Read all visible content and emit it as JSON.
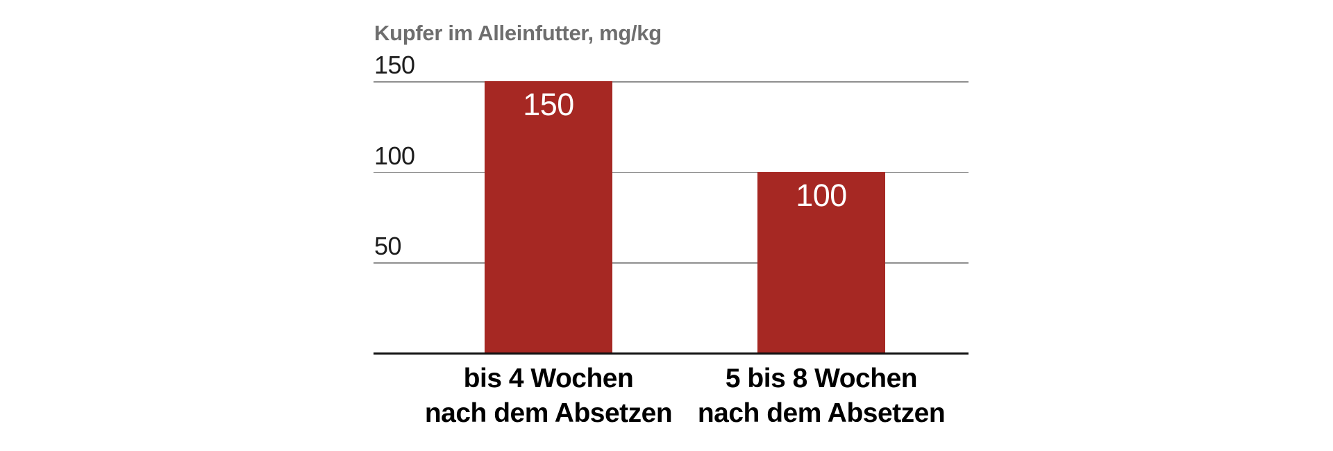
{
  "chart_data": {
    "type": "bar",
    "title": "Kupfer im Alleinfutter, mg/kg",
    "categories": [
      {
        "line1": "bis 4 Wochen",
        "line2": "nach dem Absetzen"
      },
      {
        "line1": "5 bis 8 Wochen",
        "line2": "nach dem Absetzen"
      }
    ],
    "values": [
      150,
      100
    ],
    "bar_labels": [
      "150",
      "100"
    ],
    "xlabel": "",
    "ylabel": "",
    "yticks": [
      150,
      100,
      50
    ],
    "ylim": [
      0,
      150
    ],
    "grid": true,
    "legend_position": "none",
    "colors": {
      "background": "#ffffff",
      "bar": "#a62823",
      "bar_label": "#ffffff",
      "gridline": "#8f8f8f",
      "axis_line": "#111111",
      "title": "#6e6e6e",
      "tick_label": "#1c1c1c",
      "category_label": "#000000"
    }
  }
}
